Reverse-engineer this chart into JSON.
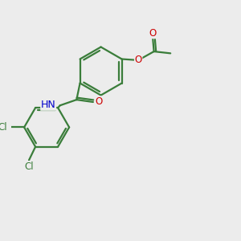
{
  "background_color": "#ececec",
  "bond_color": "#3a7d3a",
  "bond_width": 1.6,
  "atom_colors": {
    "C": "#3a7d3a",
    "N": "#0000cc",
    "O": "#cc0000",
    "Cl": "#3a7d3a",
    "H": "#3a7d3a"
  },
  "font_size": 8.5,
  "figsize": [
    3.0,
    3.0
  ],
  "dpi": 100,
  "xlim": [
    0,
    10
  ],
  "ylim": [
    0,
    10
  ]
}
